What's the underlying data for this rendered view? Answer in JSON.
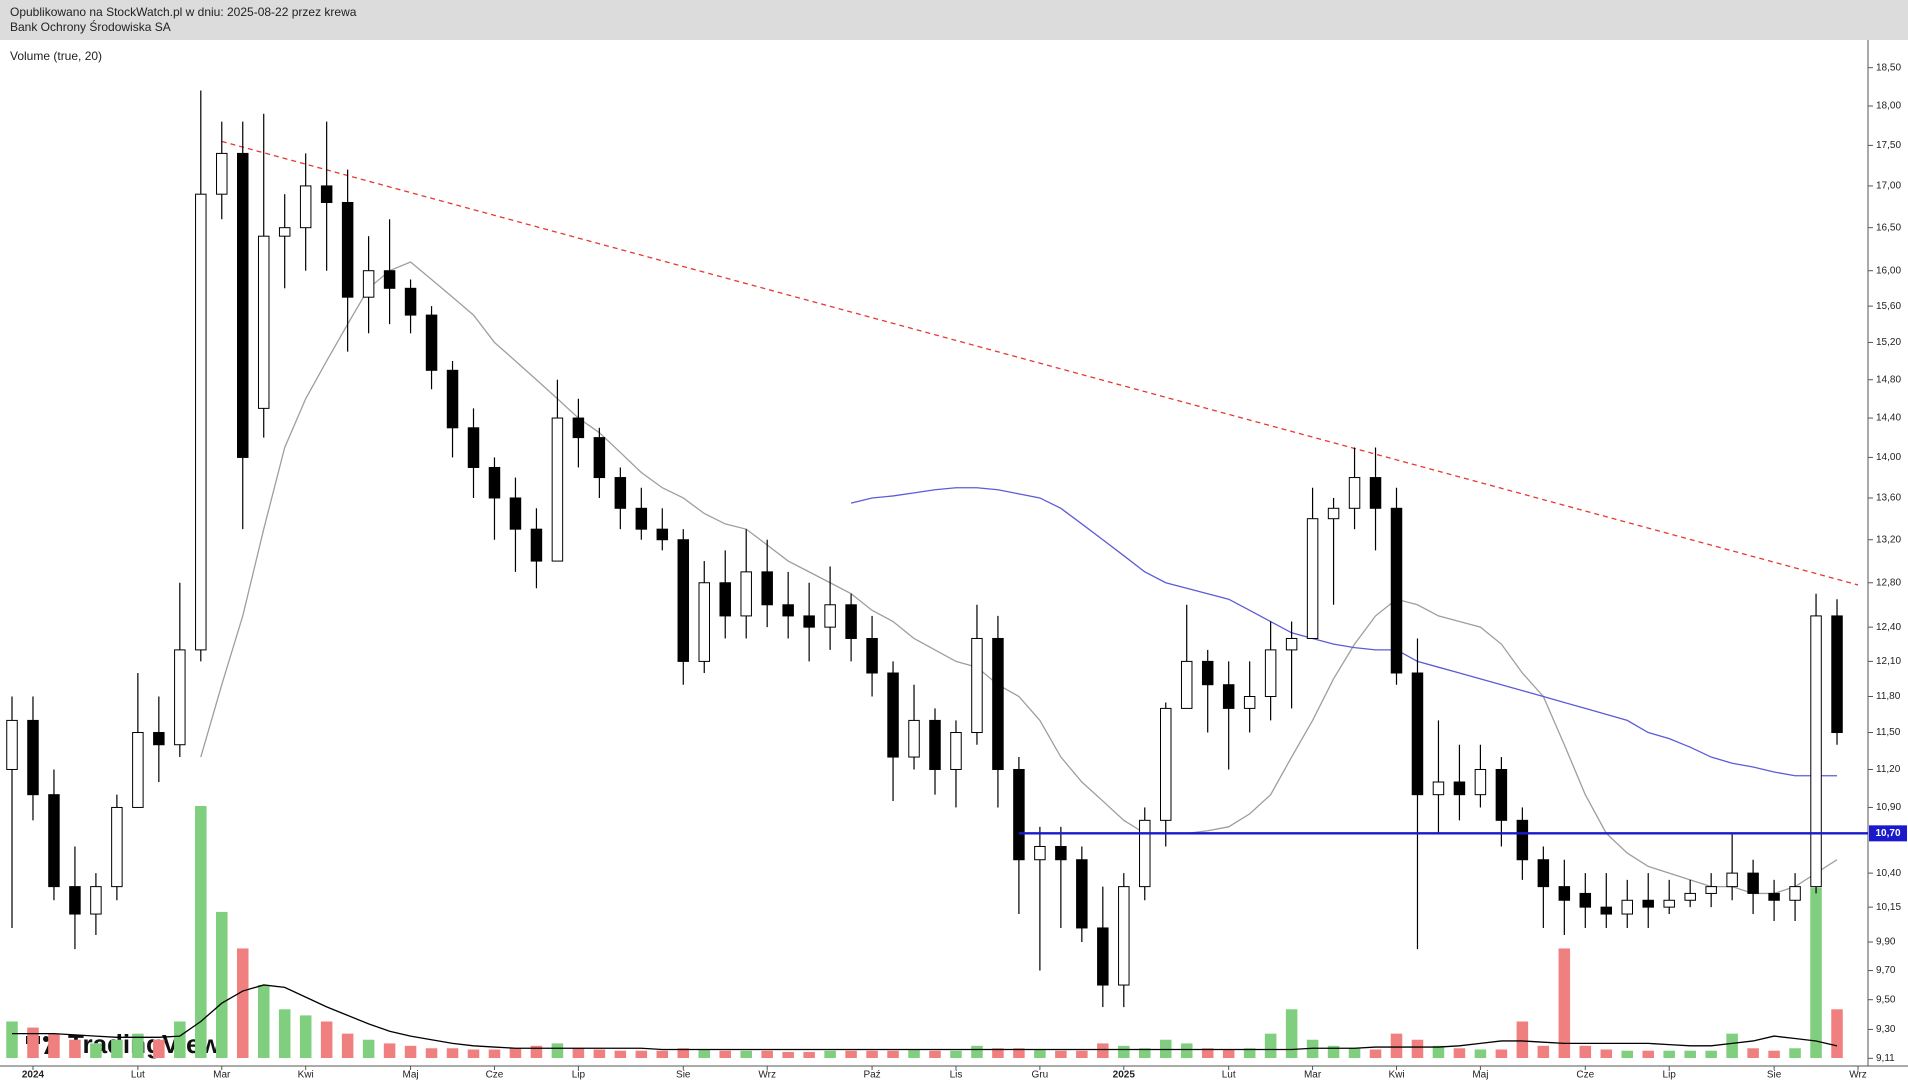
{
  "header": {
    "line1": "Opublikowano na StockWatch.pl w dniu: 2025-08-22 przez krewa",
    "line2": "Bank Ochrony Środowiska SA"
  },
  "logo": "TradingView",
  "chart_data": {
    "type": "candlestick",
    "log_scale": true,
    "volume_label": "Volume (true, 20)",
    "categories": [
      null,
      "2024",
      null,
      null,
      null,
      null,
      "Lut",
      null,
      null,
      null,
      "Mar",
      null,
      null,
      null,
      "Kwi",
      null,
      null,
      null,
      null,
      "Maj",
      null,
      null,
      null,
      "Cze",
      null,
      null,
      null,
      "Lip",
      null,
      null,
      null,
      null,
      "Sie",
      null,
      null,
      null,
      "Wrz",
      null,
      null,
      null,
      null,
      "Paź",
      null,
      null,
      null,
      "Lis",
      null,
      null,
      null,
      "Gru",
      null,
      null,
      null,
      "2025",
      null,
      null,
      null,
      null,
      "Lut",
      null,
      null,
      null,
      "Mar",
      null,
      null,
      null,
      "Kwi",
      null,
      null,
      null,
      "Maj",
      null,
      null,
      null,
      null,
      "Cze",
      null,
      null,
      null,
      "Lip",
      null,
      null,
      null,
      null,
      "Sie",
      null,
      null,
      null,
      "Wrz"
    ],
    "open": [
      11.2,
      11.6,
      11.0,
      10.3,
      10.1,
      10.3,
      10.9,
      11.5,
      11.4,
      12.2,
      16.9,
      17.4,
      14.5,
      16.4,
      16.5,
      17.0,
      16.8,
      15.7,
      16.0,
      15.8,
      15.5,
      14.9,
      14.3,
      13.9,
      13.6,
      13.3,
      13.0,
      14.4,
      14.2,
      13.8,
      13.5,
      13.3,
      13.2,
      12.1,
      12.8,
      12.5,
      12.9,
      12.6,
      12.5,
      12.4,
      12.6,
      12.3,
      12.0,
      11.3,
      11.6,
      11.2,
      11.5,
      12.3,
      11.2,
      10.5,
      10.6,
      10.5,
      10.0,
      9.6,
      10.3,
      10.8,
      11.7,
      12.1,
      11.9,
      11.7,
      11.8,
      12.2,
      12.3,
      13.4,
      13.5,
      13.8,
      13.5,
      12.0,
      11.0,
      11.1,
      11.0,
      11.2,
      10.8,
      10.5,
      10.3,
      10.25,
      10.15,
      10.1,
      10.2,
      10.15,
      10.2,
      10.25,
      10.3,
      10.4,
      10.25,
      10.2,
      10.3,
      12.5,
      null
    ],
    "high": [
      11.8,
      11.8,
      11.2,
      10.6,
      10.4,
      11.0,
      12.0,
      11.8,
      12.8,
      18.2,
      17.8,
      17.8,
      17.9,
      16.9,
      17.4,
      17.8,
      17.2,
      16.4,
      16.6,
      15.9,
      15.6,
      15.0,
      14.5,
      14.0,
      13.8,
      13.5,
      14.8,
      14.6,
      14.3,
      13.9,
      13.7,
      13.5,
      13.3,
      13.0,
      13.1,
      13.3,
      13.2,
      12.9,
      12.8,
      12.95,
      12.7,
      12.5,
      12.1,
      11.9,
      11.7,
      11.6,
      12.6,
      12.5,
      11.3,
      10.75,
      10.75,
      10.6,
      10.3,
      10.4,
      10.9,
      11.75,
      12.6,
      12.2,
      12.1,
      12.1,
      12.45,
      12.45,
      13.7,
      13.6,
      14.1,
      14.1,
      13.7,
      12.3,
      11.6,
      11.4,
      11.4,
      11.3,
      10.9,
      10.6,
      10.5,
      10.4,
      10.4,
      10.35,
      10.4,
      10.35,
      10.35,
      10.4,
      10.7,
      10.5,
      10.35,
      10.4,
      12.7,
      12.65,
      null
    ],
    "low": [
      10.0,
      10.8,
      10.2,
      9.85,
      9.95,
      10.2,
      10.9,
      11.1,
      11.3,
      12.1,
      16.6,
      13.3,
      14.2,
      15.8,
      16.0,
      16.0,
      15.1,
      15.3,
      15.4,
      15.3,
      14.7,
      14.0,
      13.6,
      13.2,
      12.9,
      12.75,
      13.0,
      13.9,
      13.6,
      13.3,
      13.2,
      13.1,
      11.9,
      12.0,
      12.3,
      12.3,
      12.4,
      12.3,
      12.1,
      12.2,
      12.1,
      11.8,
      10.95,
      11.2,
      11.0,
      10.9,
      11.4,
      10.9,
      10.1,
      9.7,
      10.0,
      9.9,
      9.45,
      9.45,
      10.2,
      10.6,
      11.7,
      11.5,
      11.2,
      11.5,
      11.6,
      11.7,
      12.3,
      12.6,
      13.3,
      13.1,
      11.9,
      9.85,
      10.7,
      10.8,
      10.9,
      10.6,
      10.35,
      10.0,
      9.95,
      10.0,
      10.0,
      10.0,
      10.0,
      10.1,
      10.15,
      10.15,
      10.2,
      10.1,
      10.05,
      10.05,
      10.25,
      11.4,
      null
    ],
    "close": [
      11.6,
      11.0,
      10.3,
      10.1,
      10.3,
      10.9,
      11.5,
      11.4,
      12.2,
      16.9,
      17.4,
      14.0,
      16.4,
      16.5,
      17.0,
      16.8,
      15.7,
      16.0,
      15.8,
      15.5,
      14.9,
      14.3,
      13.9,
      13.6,
      13.3,
      13.0,
      14.4,
      14.2,
      13.8,
      13.5,
      13.3,
      13.2,
      12.1,
      12.8,
      12.5,
      12.9,
      12.6,
      12.5,
      12.4,
      12.6,
      12.3,
      12.0,
      11.3,
      11.6,
      11.2,
      11.5,
      12.3,
      11.2,
      10.5,
      10.6,
      10.5,
      10.0,
      9.6,
      10.3,
      10.8,
      11.7,
      12.1,
      11.9,
      11.7,
      11.8,
      12.2,
      12.3,
      13.4,
      13.5,
      13.8,
      13.5,
      12.0,
      11.0,
      11.1,
      11.0,
      11.2,
      10.8,
      10.5,
      10.3,
      10.2,
      10.15,
      10.1,
      10.2,
      10.15,
      10.2,
      10.25,
      10.3,
      10.4,
      10.25,
      10.2,
      10.3,
      12.5,
      11.5,
      null
    ],
    "volume": [
      30,
      25,
      20,
      15,
      12,
      15,
      20,
      15,
      30,
      207,
      120,
      90,
      60,
      40,
      35,
      30,
      20,
      15,
      12,
      10,
      8,
      8,
      7,
      7,
      8,
      10,
      12,
      8,
      7,
      6,
      6,
      6,
      8,
      7,
      6,
      6,
      6,
      5,
      5,
      6,
      6,
      6,
      6,
      7,
      6,
      6,
      10,
      8,
      8,
      7,
      6,
      6,
      12,
      10,
      8,
      15,
      12,
      8,
      7,
      8,
      20,
      40,
      15,
      10,
      8,
      7,
      20,
      15,
      10,
      8,
      7,
      7,
      30,
      10,
      90,
      10,
      7,
      6,
      6,
      6,
      6,
      6,
      20,
      8,
      6,
      8,
      140,
      40,
      null
    ],
    "volume_ma": {
      "color": "#000000",
      "values": [
        20,
        20,
        20,
        19,
        18,
        17,
        17,
        17,
        18,
        30,
        45,
        55,
        60,
        58,
        50,
        42,
        35,
        28,
        22,
        18,
        15,
        12,
        10,
        9,
        8,
        8,
        8,
        8,
        8,
        8,
        8,
        7,
        7,
        7,
        7,
        7,
        7,
        7,
        7,
        7,
        7,
        7,
        7,
        7,
        7,
        7,
        7,
        7,
        7,
        7,
        7,
        7,
        7,
        7,
        7,
        7,
        7,
        7,
        7,
        7,
        7,
        7,
        8,
        8,
        8,
        9,
        9,
        9,
        9,
        10,
        12,
        14,
        14,
        13,
        12,
        12,
        12,
        12,
        12,
        11,
        10,
        10,
        12,
        14,
        18,
        16,
        14,
        10,
        null
      ]
    },
    "up_color": "#ffffff",
    "down_color": "#000000",
    "candle_stroke": "#000000",
    "volume_up_color": "#7fcf7f",
    "volume_down_color": "#f08080",
    "series": [
      {
        "color": "#9e9e9e",
        "values": [
          null,
          null,
          null,
          null,
          null,
          null,
          null,
          null,
          null,
          11.3,
          11.9,
          12.5,
          13.3,
          14.1,
          14.6,
          15.0,
          15.4,
          15.8,
          16.0,
          16.1,
          15.9,
          15.7,
          15.5,
          15.2,
          15.0,
          14.8,
          14.6,
          14.4,
          14.25,
          14.05,
          13.85,
          13.7,
          13.6,
          13.45,
          13.35,
          13.3,
          13.15,
          13.0,
          12.9,
          12.8,
          12.7,
          12.55,
          12.45,
          12.3,
          12.2,
          12.1,
          12.05,
          11.9,
          11.8,
          11.6,
          11.3,
          11.1,
          10.95,
          10.8,
          10.7,
          10.7,
          10.7,
          10.72,
          10.75,
          10.85,
          11.0,
          11.3,
          11.6,
          11.95,
          12.25,
          12.5,
          12.65,
          12.6,
          12.5,
          12.45,
          12.4,
          12.25,
          12.0,
          11.8,
          11.4,
          11.0,
          10.7,
          10.55,
          10.45,
          10.4,
          10.35,
          10.3,
          10.3,
          10.25,
          10.25,
          10.3,
          10.4,
          10.5,
          null
        ]
      },
      {
        "color": "#5c5cd6",
        "values": [
          null,
          null,
          null,
          null,
          null,
          null,
          null,
          null,
          null,
          null,
          null,
          null,
          null,
          null,
          null,
          null,
          null,
          null,
          null,
          null,
          null,
          null,
          null,
          null,
          null,
          null,
          null,
          null,
          null,
          null,
          null,
          null,
          null,
          null,
          null,
          null,
          null,
          null,
          null,
          null,
          13.55,
          13.6,
          13.62,
          13.65,
          13.68,
          13.7,
          13.7,
          13.68,
          13.64,
          13.6,
          13.5,
          13.35,
          13.2,
          13.05,
          12.9,
          12.8,
          12.75,
          12.7,
          12.65,
          12.55,
          12.45,
          12.35,
          12.3,
          12.25,
          12.22,
          12.2,
          12.2,
          12.1,
          12.05,
          12.0,
          11.95,
          11.9,
          11.85,
          11.8,
          11.75,
          11.7,
          11.65,
          11.6,
          11.5,
          11.45,
          11.38,
          11.3,
          11.25,
          11.22,
          11.18,
          11.15,
          11.15,
          11.15,
          null
        ]
      }
    ],
    "trendline": {
      "color": "#e53935",
      "start_index": 10,
      "start": 17.55,
      "end_index": 88,
      "end": 12.78
    },
    "hline": {
      "value": 10.7,
      "label": "10,70",
      "color": "#1a1acc",
      "start_index": 48
    },
    "ylim": [
      9.06,
      18.87
    ],
    "yticks": [
      {
        "value": 18.5,
        "label": "18,50"
      },
      {
        "value": 18,
        "label": "18,00"
      },
      {
        "value": 17.5,
        "label": "17,50"
      },
      {
        "value": 17,
        "label": "17,00"
      },
      {
        "value": 16.5,
        "label": "16,50"
      },
      {
        "value": 16,
        "label": "16,00"
      },
      {
        "value": 15.6,
        "label": "15,60"
      },
      {
        "value": 15.2,
        "label": "15,20"
      },
      {
        "value": 14.8,
        "label": "14,80"
      },
      {
        "value": 14.4,
        "label": "14,40"
      },
      {
        "value": 14,
        "label": "14,00"
      },
      {
        "value": 13.6,
        "label": "13,60"
      },
      {
        "value": 13.2,
        "label": "13,20"
      },
      {
        "value": 12.8,
        "label": "12,80"
      },
      {
        "value": 12.4,
        "label": "12,40"
      },
      {
        "value": 12.1,
        "label": "12,10"
      },
      {
        "value": 11.8,
        "label": "11,80"
      },
      {
        "value": 11.5,
        "label": "11,50"
      },
      {
        "value": 11.2,
        "label": "11,20"
      },
      {
        "value": 10.9,
        "label": "10,90"
      },
      {
        "value": 10.4,
        "label": "10,40"
      },
      {
        "value": 10.15,
        "label": "10,15"
      },
      {
        "value": 9.9,
        "label": "9,90"
      },
      {
        "value": 9.7,
        "label": "9,70"
      },
      {
        "value": 9.5,
        "label": "9,50"
      },
      {
        "value": 9.3,
        "label": "9,30"
      },
      {
        "value": 9.11,
        "label": "9,11"
      }
    ]
  }
}
